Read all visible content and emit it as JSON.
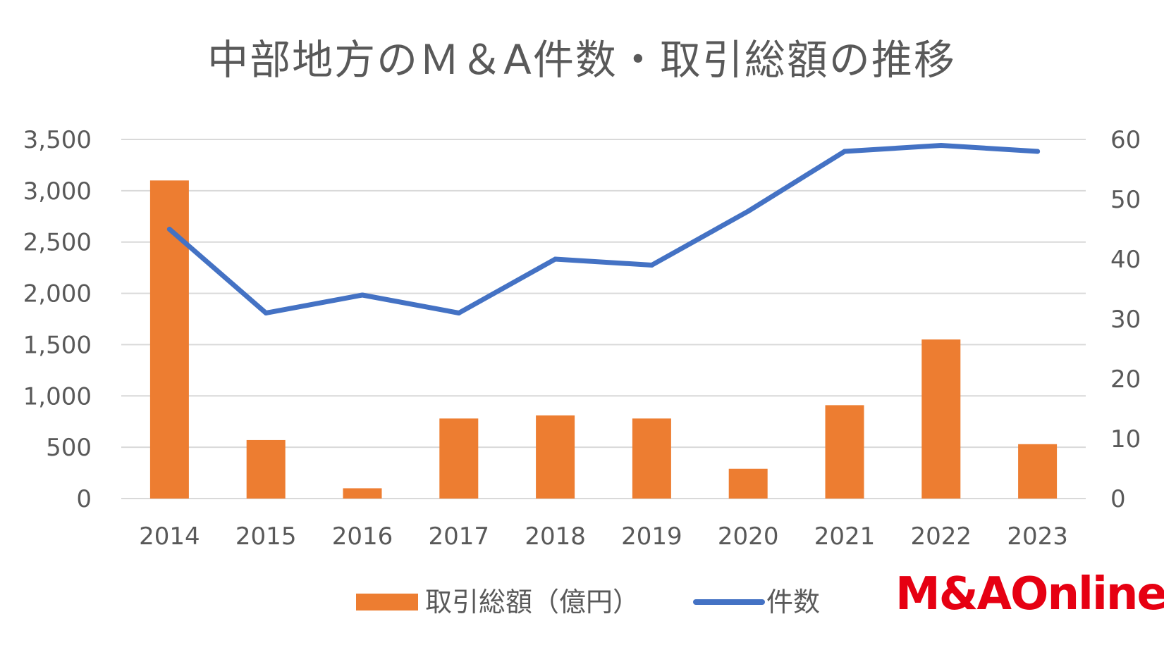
{
  "chart_data": {
    "type": "bar+line",
    "title": "中部地方のＭ＆A件数・取引総額の推移",
    "categories": [
      "2014",
      "2015",
      "2016",
      "2017",
      "2018",
      "2019",
      "2020",
      "2021",
      "2022",
      "2023"
    ],
    "series": [
      {
        "name": "取引総額（億円）",
        "type": "bar",
        "axis": "left",
        "color": "#ed7d31",
        "values": [
          3100,
          570,
          100,
          780,
          810,
          780,
          290,
          910,
          1550,
          530
        ]
      },
      {
        "name": "件数",
        "type": "line",
        "axis": "right",
        "color": "#4472c4",
        "values": [
          45,
          31,
          34,
          31,
          40,
          39,
          48,
          58,
          59,
          58
        ]
      }
    ],
    "y_left": {
      "min": 0,
      "max": 3500,
      "ticks": [
        "0",
        "500",
        "1,000",
        "1,500",
        "2,000",
        "2,500",
        "3,000",
        "3,500"
      ]
    },
    "y_right": {
      "min": 0,
      "max": 60,
      "ticks": [
        "0",
        "10",
        "20",
        "30",
        "40",
        "50",
        "60"
      ]
    },
    "grid": true,
    "legend_position": "bottom",
    "gridline_color": "#d9d9d9"
  },
  "logo": {
    "text": "M&AOnline",
    "color": "#e60012"
  }
}
